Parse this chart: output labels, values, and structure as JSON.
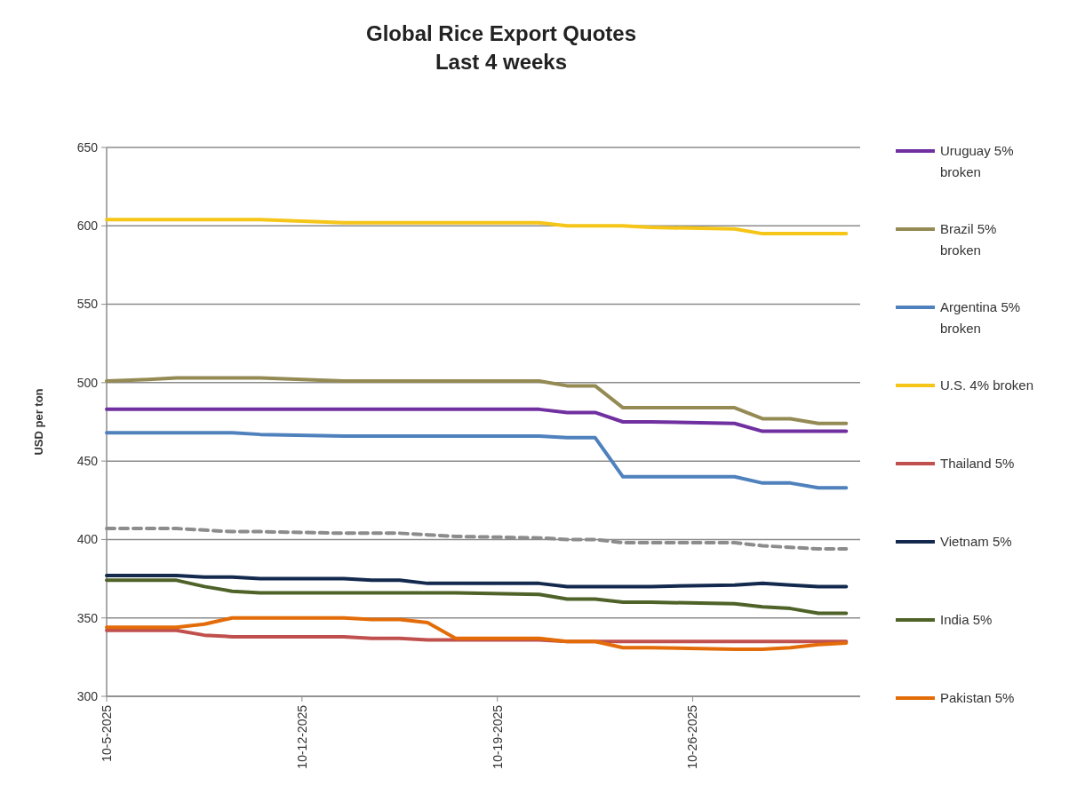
{
  "chart_data": {
    "type": "line",
    "title": "Global Rice Export Quotes",
    "subtitle": "Last 4 weeks",
    "ylabel": "USD per ton",
    "x": [
      "2025-10-05",
      "2025-10-06T12:00",
      "2025-10-07T12:00",
      "2025-10-08T12:00",
      "2025-10-09T12:00",
      "2025-10-10T12:00",
      "2025-10-13T12:00",
      "2025-10-14T12:00",
      "2025-10-15T12:00",
      "2025-10-16T12:00",
      "2025-10-17T12:00",
      "2025-10-20T12:00",
      "2025-10-21T12:00",
      "2025-10-22T12:00",
      "2025-10-23T12:00",
      "2025-10-24T12:00",
      "2025-10-27T12:00",
      "2025-10-28T12:00",
      "2025-10-29T12:00",
      "2025-10-30T12:00",
      "2025-10-31T12:00"
    ],
    "xlim": [
      "2025-10-05",
      "2025-11-01"
    ],
    "xticks": [
      {
        "value": "2025-10-05",
        "label": "10-5-2025"
      },
      {
        "value": "2025-10-12",
        "label": "10-12-2025"
      },
      {
        "value": "2025-10-19",
        "label": "10-19-2025"
      },
      {
        "value": "2025-10-26",
        "label": "10-26-2025"
      }
    ],
    "ylim": [
      300,
      650
    ],
    "yticks": [
      300,
      350,
      400,
      450,
      500,
      550,
      600,
      650
    ],
    "grid": "y",
    "legend": "right",
    "marker": "none",
    "series": [
      {
        "name": "Uruguay 5% broken",
        "color": "#7030a0",
        "values": [
          483,
          483,
          483,
          483,
          483,
          483,
          483,
          483,
          483,
          483,
          483,
          483,
          481,
          481,
          475,
          475,
          474,
          469,
          469,
          469,
          469
        ]
      },
      {
        "name": "Brazil 5% broken",
        "color": "#948a54",
        "values": [
          501,
          502,
          503,
          503,
          503,
          503,
          501,
          501,
          501,
          501,
          501,
          501,
          498,
          498,
          484,
          484,
          484,
          477,
          477,
          474,
          474
        ]
      },
      {
        "name": "Argentina 5% broken",
        "color": "#4f81bd",
        "values": [
          468,
          468,
          468,
          468,
          468,
          467,
          466,
          466,
          466,
          466,
          466,
          466,
          465,
          465,
          440,
          440,
          440,
          436,
          436,
          433,
          433
        ]
      },
      {
        "name": "U.S. 4% broken",
        "color": "#f5c518",
        "values": [
          604,
          604,
          604,
          604,
          604,
          604,
          602,
          602,
          602,
          602,
          602,
          602,
          600,
          600,
          600,
          599,
          598,
          595,
          595,
          595,
          595
        ]
      },
      {
        "name": "Thailand 5%",
        "color": "#c0504d",
        "values": [
          342,
          342,
          342,
          339,
          338,
          338,
          338,
          337,
          337,
          336,
          336,
          336,
          335,
          335,
          335,
          335,
          335,
          335,
          335,
          335,
          335
        ]
      },
      {
        "name": "Vietnam 5%",
        "color": "#132a4e",
        "values": [
          377,
          377,
          377,
          376,
          376,
          375,
          375,
          374,
          374,
          372,
          372,
          372,
          370,
          370,
          370,
          370,
          371,
          372,
          371,
          370,
          370
        ]
      },
      {
        "name": "India 5%",
        "color": "#4f6228",
        "values": [
          374,
          374,
          374,
          370,
          367,
          366,
          366,
          366,
          366,
          366,
          366,
          365,
          362,
          362,
          360,
          360,
          359,
          357,
          356,
          353,
          353
        ]
      },
      {
        "name": "Pakistan 5%",
        "color": "#e36c09",
        "values": [
          344,
          344,
          344,
          346,
          350,
          350,
          350,
          349,
          349,
          347,
          337,
          337,
          335,
          335,
          331,
          331,
          330,
          330,
          331,
          333,
          334
        ]
      },
      {
        "color": "#8c8c8c",
        "line_style": "dashed",
        "values": [
          407,
          407,
          407,
          406,
          405,
          405,
          404,
          404,
          404,
          403,
          402,
          401,
          400,
          400,
          398,
          398,
          398,
          396,
          395,
          394,
          394
        ]
      }
    ]
  }
}
